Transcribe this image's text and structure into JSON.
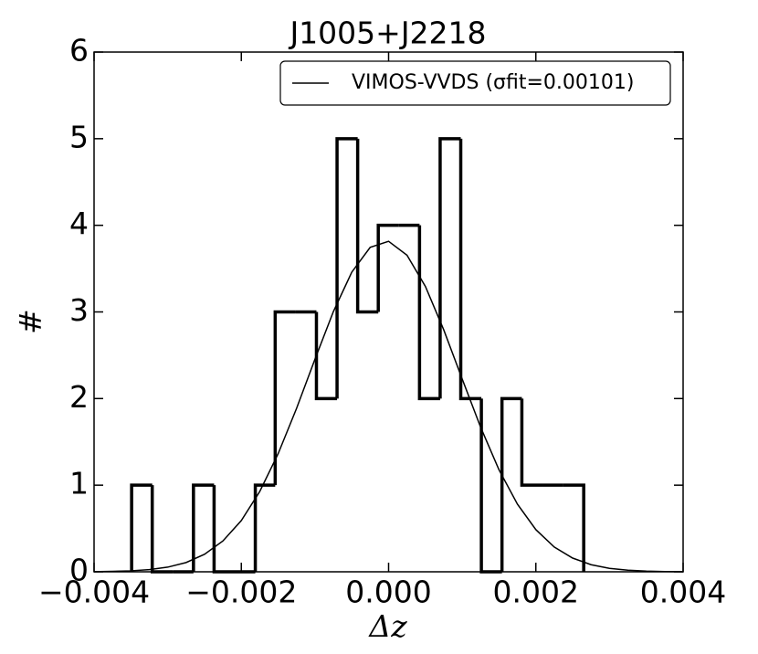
{
  "chart_data": {
    "type": "histogram",
    "title": "J1005+J2218",
    "x_label": "Δz",
    "y_label": "#",
    "bins": [
      -0.00349,
      -0.00321,
      -0.00293,
      -0.00265,
      -0.00237,
      -0.00209,
      -0.00181,
      -0.00154,
      -0.00126,
      -0.00098,
      -0.0007,
      -0.00042,
      -0.00014,
      0.00014,
      0.00042,
      0.0007,
      0.00098,
      0.00126,
      0.00154,
      0.00181,
      0.00209,
      0.00237,
      0.00265
    ],
    "counts": [
      1,
      0,
      0,
      1,
      0,
      0,
      1,
      3,
      3,
      2,
      5,
      3,
      4,
      4,
      2,
      5,
      2,
      0,
      2,
      1,
      1,
      1
    ],
    "color": "#000000",
    "series": [
      {
        "name": "VIMOS-VVDS (σfit=0.00101)",
        "color": "#000000",
        "x": [
          -0.004,
          -0.00375,
          -0.0035,
          -0.00325,
          -0.003,
          -0.00275,
          -0.0025,
          -0.00225,
          -0.002,
          -0.00175,
          -0.0015,
          -0.00125,
          -0.001,
          -0.00075,
          -0.0005,
          -0.00025,
          0,
          0.00025,
          0.0005,
          0.00075,
          0.001,
          0.00125,
          0.0015,
          0.00175,
          0.002,
          0.00225,
          0.0025,
          0.00275,
          0.003,
          0.00325,
          0.0035,
          0.00375,
          0.004
        ],
        "values": [
          0.0018,
          0.0047,
          0.0112,
          0.0253,
          0.0536,
          0.107,
          0.202,
          0.356,
          0.592,
          0.927,
          1.363,
          1.886,
          2.454,
          3.004,
          3.459,
          3.746,
          3.815,
          3.655,
          3.294,
          2.791,
          2.225,
          1.669,
          1.176,
          0.781,
          0.487,
          0.286,
          0.158,
          0.082,
          0.04,
          0.018,
          0.0079,
          0.0032,
          0.0012
        ]
      }
    ],
    "xlim": [
      -0.004,
      0.004
    ],
    "ylim": [
      0,
      6
    ],
    "xticks": [
      {
        "value": -0.004,
        "label": "−0.004"
      },
      {
        "value": -0.002,
        "label": "−0.002"
      },
      {
        "value": 0,
        "label": "0.000"
      },
      0.002,
      0.004
    ],
    "yticks": [
      0,
      1,
      2,
      3,
      4,
      5,
      6
    ],
    "legend": "upper right"
  }
}
